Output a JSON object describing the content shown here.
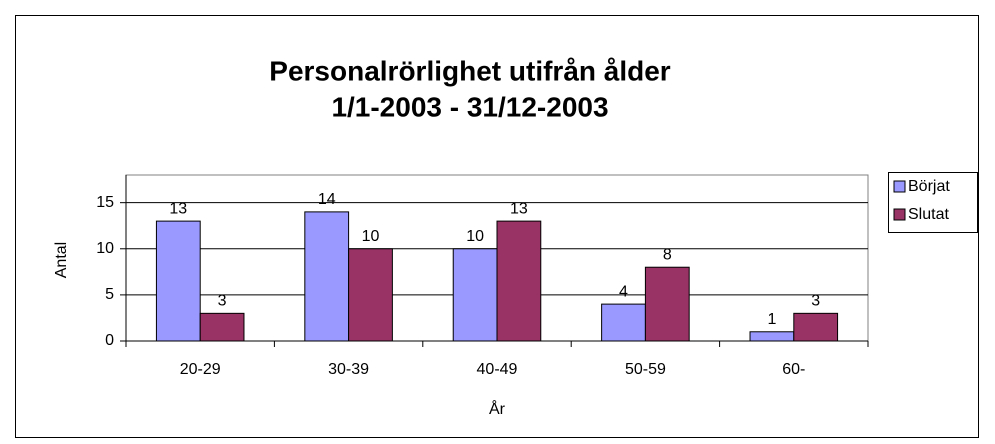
{
  "chart_data": {
    "type": "bar",
    "title": "Personalrörlighet utifrån ålder",
    "subtitle": "1/1-2003 - 31/12-2003",
    "x_label": "År",
    "y_label": "Antal",
    "categories": [
      "20-29",
      "30-39",
      "40-49",
      "50-59",
      "60-"
    ],
    "series": [
      {
        "name": "Börjat",
        "color": "#9999ff",
        "values": [
          13,
          14,
          10,
          4,
          1
        ]
      },
      {
        "name": "Slutat",
        "color": "#993366",
        "values": [
          3,
          10,
          13,
          8,
          3
        ]
      }
    ],
    "ylim": [
      0,
      18
    ],
    "yticks": [
      0,
      5,
      10,
      15
    ],
    "grid": true,
    "legend": "right"
  }
}
